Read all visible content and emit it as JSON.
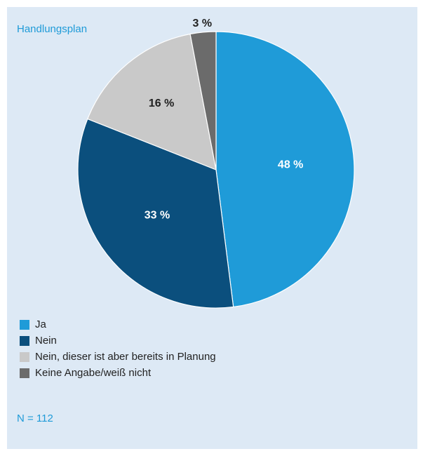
{
  "chart_data": {
    "type": "pie",
    "title": "Handlungsplan",
    "categories": [
      "Ja",
      "Nein",
      "Nein, dieser ist aber bereits in Planung",
      "Keine Angabe/weiß nicht"
    ],
    "values": [
      48,
      33,
      16,
      3
    ],
    "value_labels": [
      "48 %",
      "33 %",
      "16 %",
      "3 %"
    ],
    "colors": [
      "#1f9bd8",
      "#0b4f7d",
      "#c9c9c9",
      "#6b6b6b"
    ],
    "note": "N = 112"
  }
}
